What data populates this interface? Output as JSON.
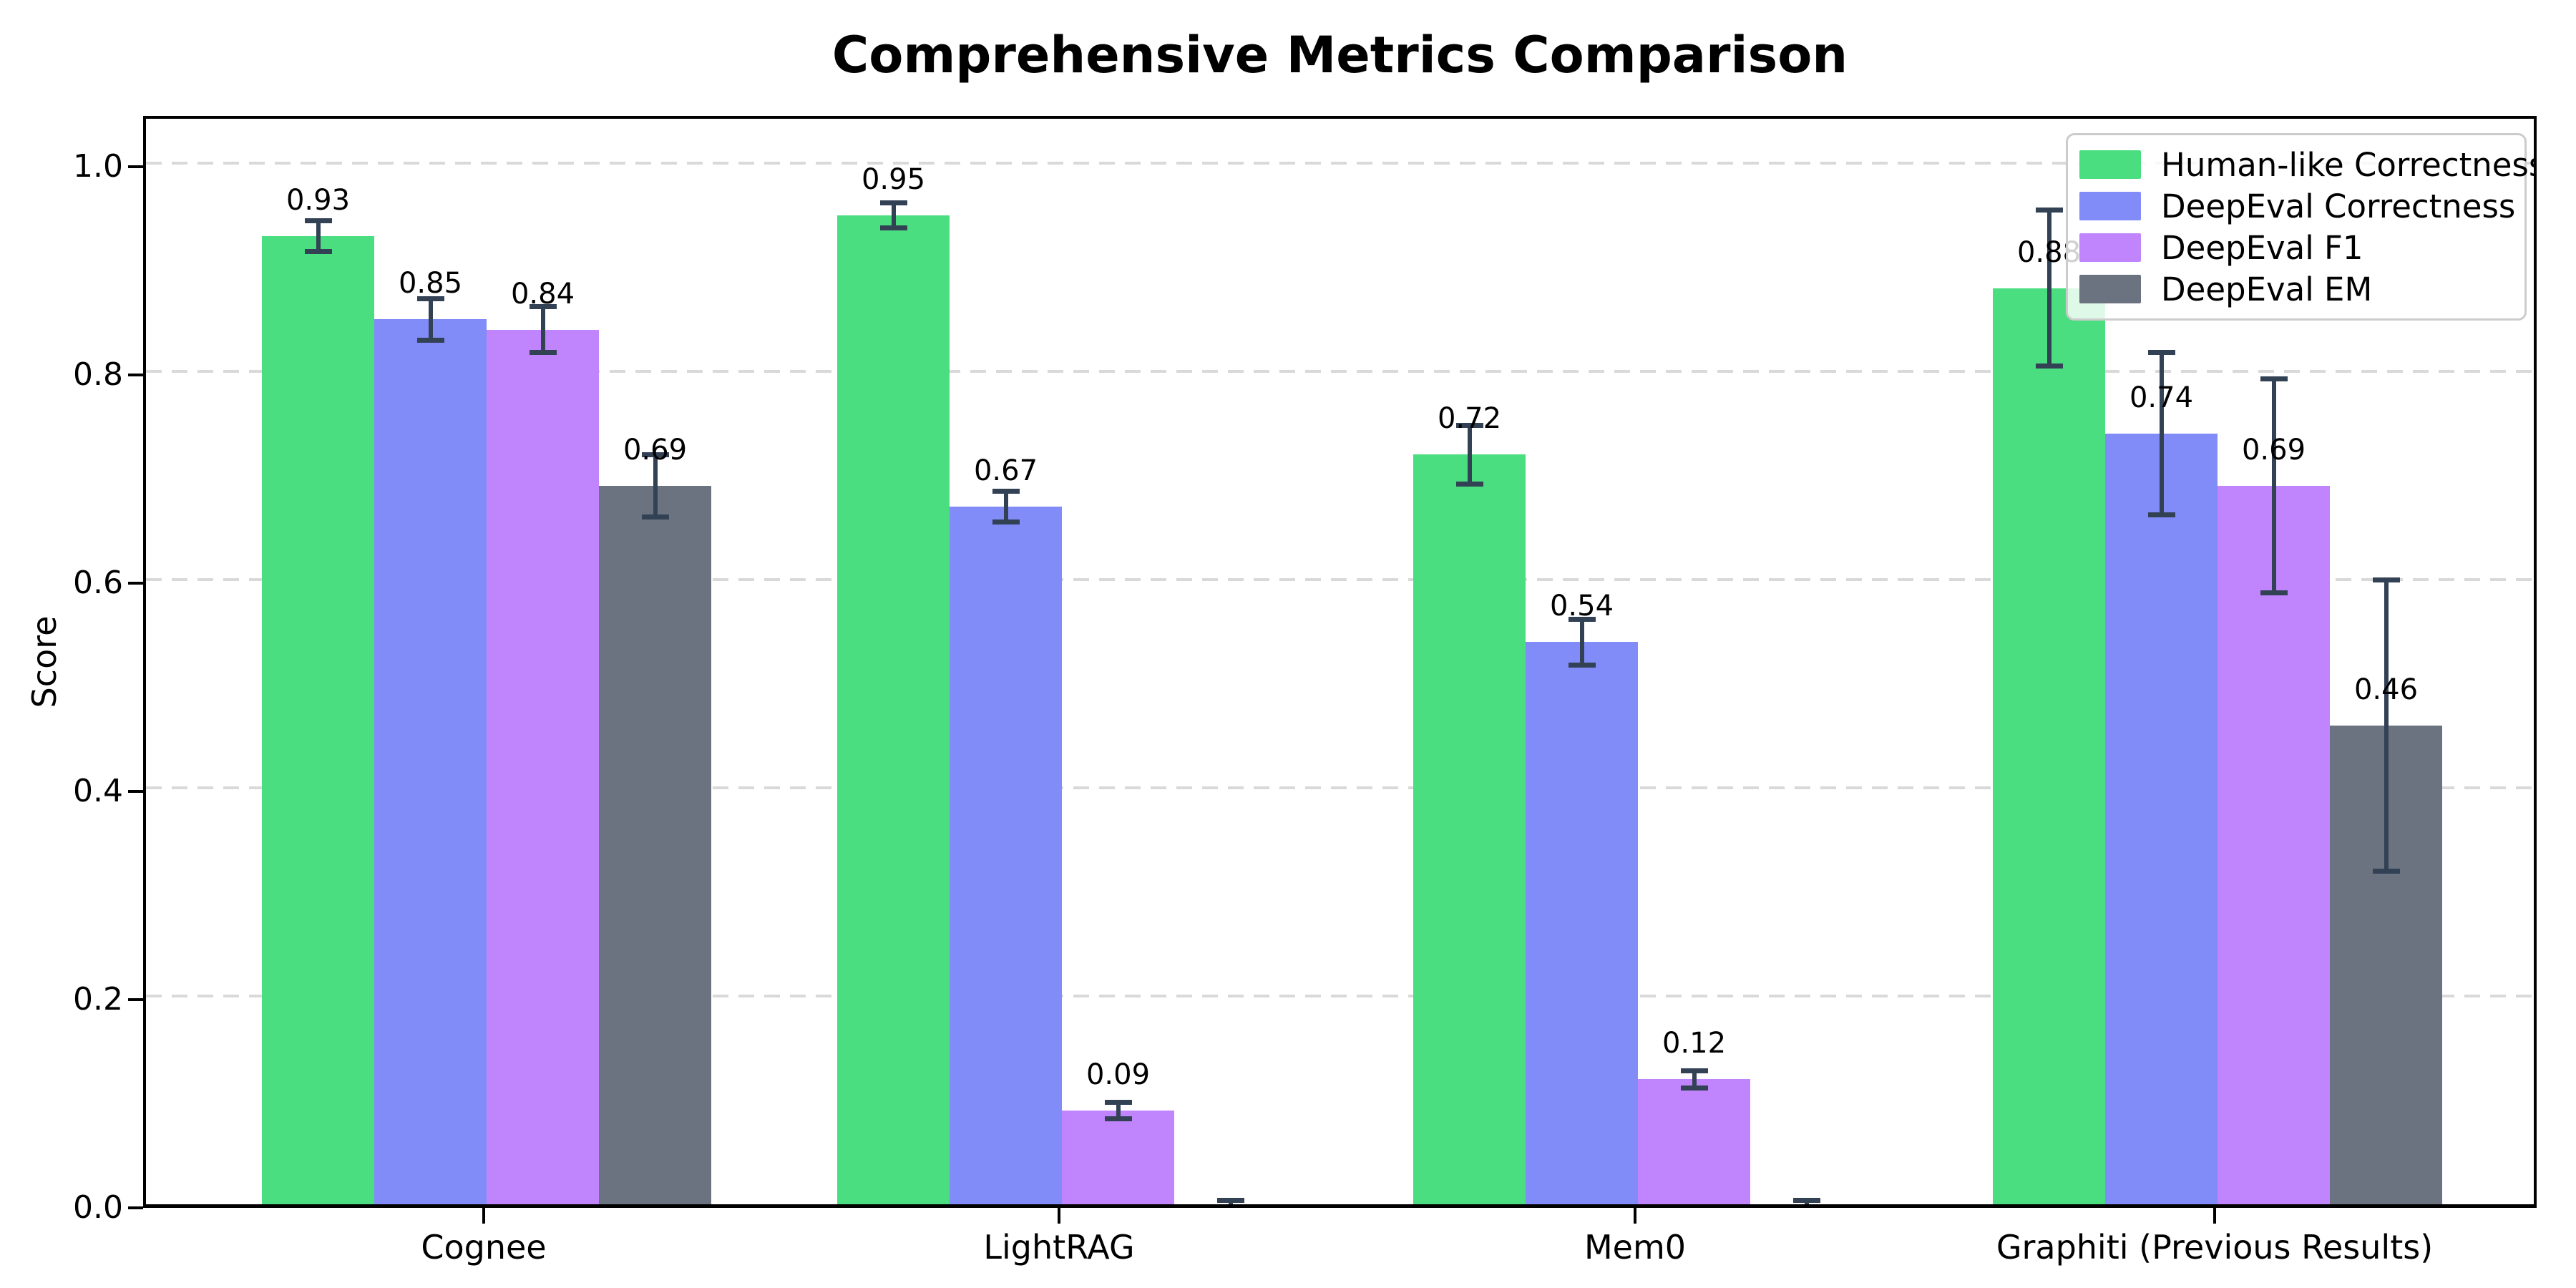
{
  "chart_data": {
    "type": "bar",
    "title": "Comprehensive Metrics Comparison",
    "xlabel": "",
    "ylabel": "Score",
    "categories": [
      "Cognee",
      "LightRAG",
      "Mem0",
      "Graphiti (Previous Results)"
    ],
    "series": [
      {
        "name": "Human-like Correctness",
        "color": "#4ade80",
        "values": [
          0.93,
          0.95,
          0.72,
          0.88
        ],
        "errors": [
          0.015,
          0.012,
          0.028,
          0.075
        ]
      },
      {
        "name": "DeepEval Correctness",
        "color": "#818cf8",
        "values": [
          0.85,
          0.67,
          0.54,
          0.74
        ],
        "errors": [
          0.02,
          0.015,
          0.022,
          0.078
        ]
      },
      {
        "name": "DeepEval F1",
        "color": "#c084fc",
        "values": [
          0.84,
          0.09,
          0.12,
          0.69
        ],
        "errors": [
          0.022,
          0.008,
          0.008,
          0.103
        ]
      },
      {
        "name": "DeepEval EM",
        "color": "#6b7280",
        "values": [
          0.69,
          0.0,
          0.0,
          0.46
        ],
        "errors": [
          0.03,
          0.004,
          0.004,
          0.14
        ]
      }
    ],
    "bar_value_labels": [
      [
        "0.93",
        "0.95",
        "0.72",
        "0.88"
      ],
      [
        "0.85",
        "0.67",
        "0.54",
        "0.74"
      ],
      [
        "0.84",
        "0.09",
        "0.12",
        "0.69"
      ],
      [
        "0.69",
        "",
        "",
        "0.46"
      ]
    ],
    "ylim": [
      0.0,
      1.05
    ],
    "yticks": [
      0.0,
      0.2,
      0.4,
      0.6,
      0.8,
      1.0
    ],
    "grid": "horizontal-dashed",
    "legend_position": "upper-right",
    "error_bars": true
  },
  "style": {
    "errorbar_color": "#334155",
    "grid_color": "#d9d9d9",
    "spine_color": "#000000",
    "legend_border_color": "#cccccc"
  }
}
